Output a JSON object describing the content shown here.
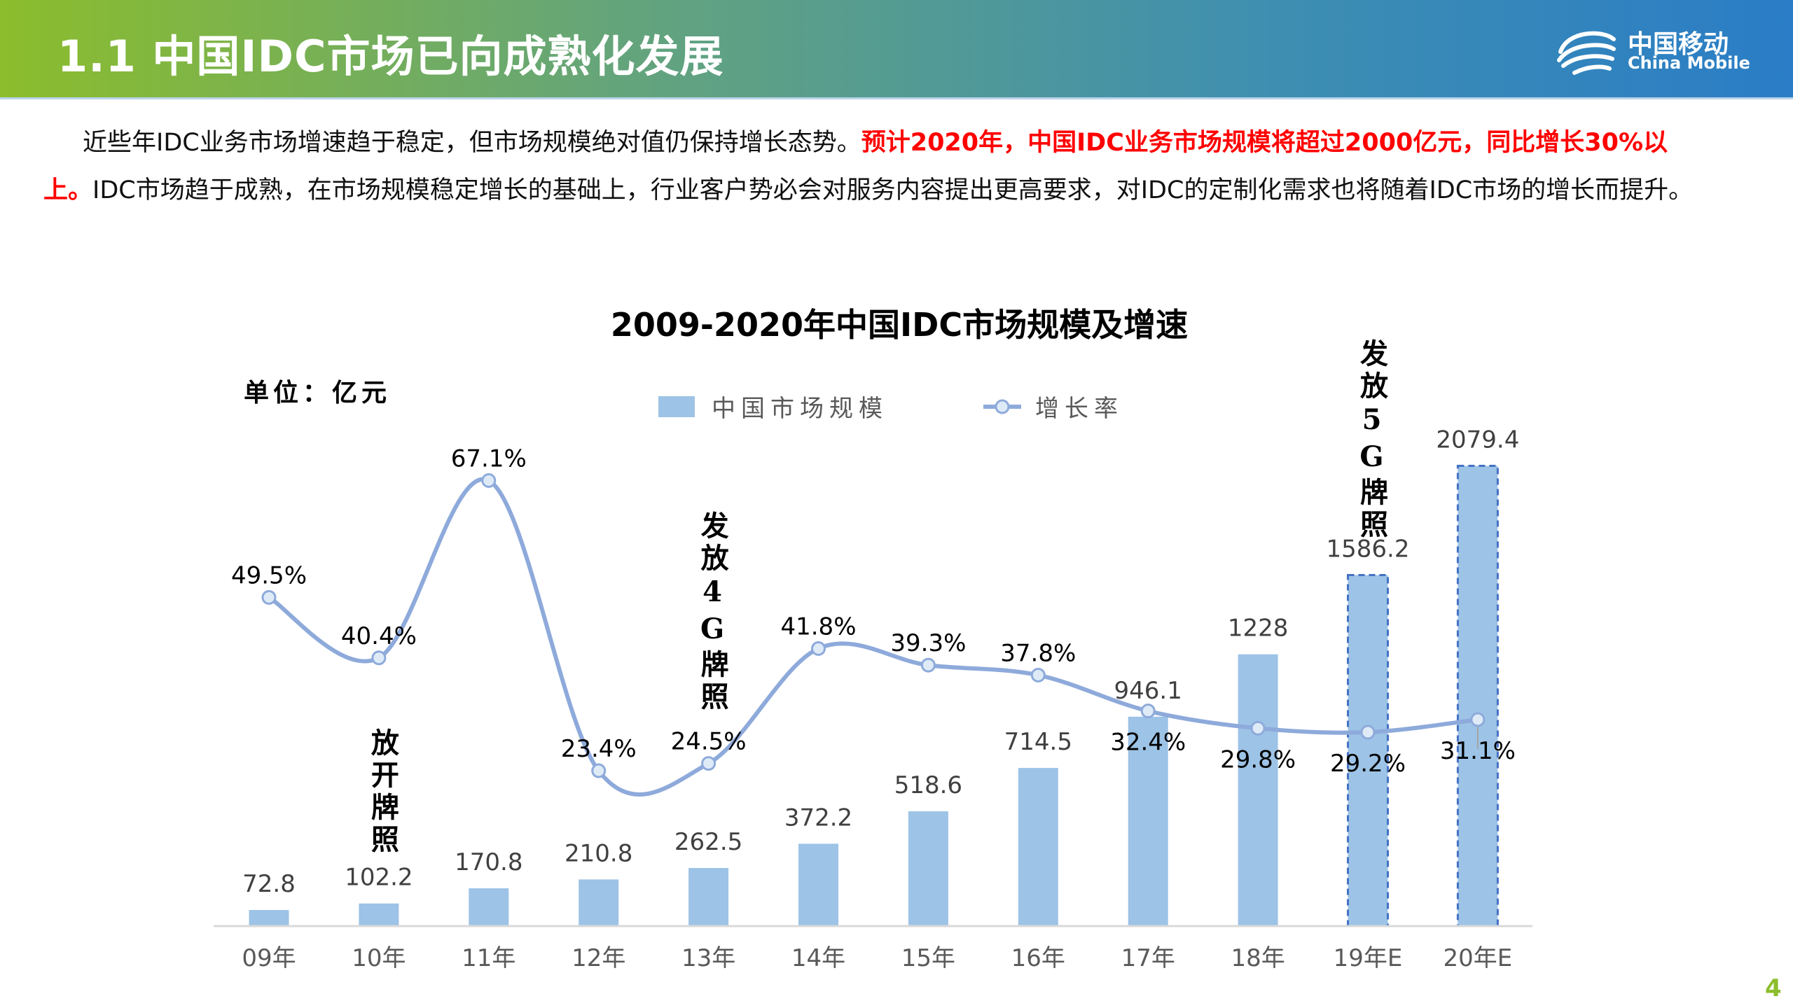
{
  "header": {
    "title": "1.1 中国IDC市场已向成熟化发展"
  },
  "logo": {
    "cn": "中国移动",
    "en": "China Mobile"
  },
  "body": {
    "part1": "近些年IDC业务市场增速趋于稳定，但市场规模绝对值仍保持增长态势。",
    "highlight": "预计2020年，中国IDC业务市场规模将超过2000亿元，同比增长30%以上。",
    "part2": "IDC市场趋于成熟，在市场规模稳定增长的基础上，行业客户势必会对服务内容提出更高要求，对IDC的定制化需求也将随着IDC市场的增长而提升。"
  },
  "page_number": "4",
  "colors": {
    "bar": "#9dc3e6",
    "estimate_border": "#4472c4",
    "line": "#8eaadb",
    "marker_fill": "#deebf7",
    "highlight": "#ff0000"
  },
  "chart_data": {
    "type": "bar+line",
    "title": "2009-2020年中国IDC市场规模及增速",
    "unit_label": "单位：亿元",
    "categories": [
      "09年",
      "10年",
      "11年",
      "12年",
      "13年",
      "14年",
      "15年",
      "16年",
      "17年",
      "18年",
      "19年E",
      "20年E"
    ],
    "estimated": [
      false,
      false,
      false,
      false,
      false,
      false,
      false,
      false,
      false,
      false,
      true,
      true
    ],
    "series": [
      {
        "name": "中国市场规模",
        "type": "bar",
        "axis": "left",
        "values": [
          72.8,
          102.2,
          170.8,
          210.8,
          262.5,
          372.2,
          518.6,
          714.5,
          946.1,
          1228,
          1586.2,
          2079.4
        ],
        "labels": [
          "72.8",
          "102.2",
          "170.8",
          "210.8",
          "262.5",
          "372.2",
          "518.6",
          "714.5",
          "946.1",
          "1228",
          "1586.2",
          "2079.4"
        ]
      },
      {
        "name": "增长率",
        "type": "line",
        "axis": "right",
        "values": [
          49.5,
          40.4,
          67.1,
          23.4,
          24.5,
          41.8,
          39.3,
          37.8,
          32.4,
          29.8,
          29.2,
          31.1
        ],
        "labels": [
          "49.5%",
          "40.4%",
          "67.1%",
          "23.4%",
          "24.5%",
          "41.8%",
          "39.3%",
          "37.8%",
          "32.4%",
          "29.8%",
          "29.2%",
          "31.1%"
        ]
      }
    ],
    "ylim_left": [
      0,
      2100
    ],
    "ylim_right": [
      0,
      70
    ],
    "grid": false,
    "legend_position": "top",
    "annotations": [
      {
        "text": "放开牌照",
        "category": "10年"
      },
      {
        "text": "发放4G牌照",
        "category": "13年"
      },
      {
        "text": "发放5G牌照",
        "category": "19年E"
      }
    ]
  }
}
